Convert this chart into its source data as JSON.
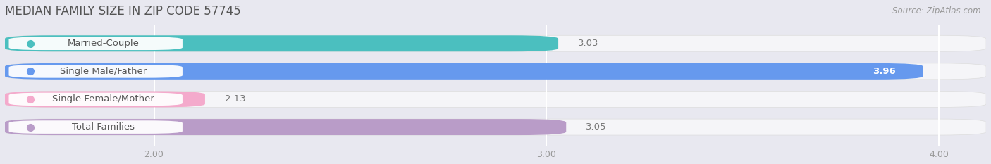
{
  "title": "MEDIAN FAMILY SIZE IN ZIP CODE 57745",
  "source": "Source: ZipAtlas.com",
  "categories": [
    "Married-Couple",
    "Single Male/Father",
    "Single Female/Mother",
    "Total Families"
  ],
  "values": [
    3.03,
    3.96,
    2.13,
    3.05
  ],
  "bar_colors": [
    "#4BBFBF",
    "#6699EE",
    "#F4AACC",
    "#B99CC8"
  ],
  "xmin": 1.62,
  "xmax": 4.12,
  "data_min": 2.0,
  "data_max": 4.0,
  "xticks": [
    2.0,
    3.0,
    4.0
  ],
  "xtick_labels": [
    "2.00",
    "3.00",
    "4.00"
  ],
  "bar_height": 0.58,
  "background_color": "#e8e8f0",
  "track_color": "#f5f5f8",
  "label_box_color": "#ffffff",
  "grid_color": "#ffffff",
  "title_color": "#555555",
  "source_color": "#999999",
  "value_outside_color": "#777777",
  "value_inside_color": "#ffffff",
  "label_text_color": "#555555"
}
